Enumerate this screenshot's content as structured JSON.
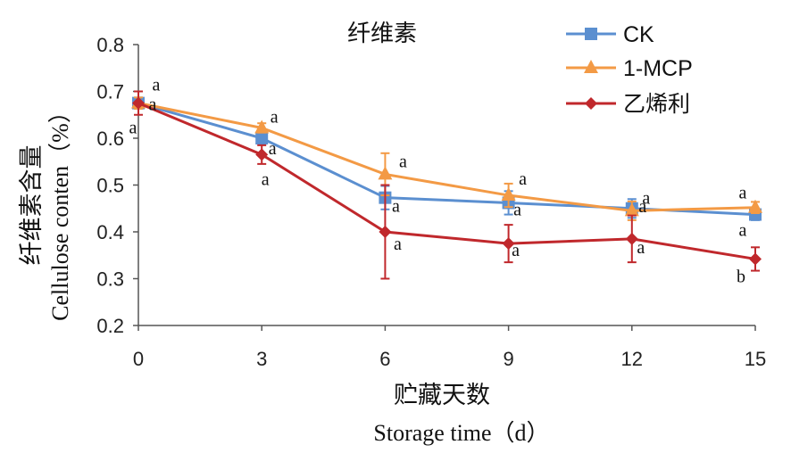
{
  "chart_data": {
    "type": "line",
    "title": "纤维素",
    "xlabel_cn": "贮藏天数",
    "xlabel_en": "Storage time（d）",
    "ylabel_cn": "纤维素含量",
    "ylabel_en": "Cellulose conten（%）",
    "x": [
      0,
      3,
      6,
      9,
      12,
      15
    ],
    "xlim": [
      0,
      15
    ],
    "ylim": [
      0.2,
      0.8
    ],
    "yticks": [
      0.2,
      0.3,
      0.4,
      0.5,
      0.6,
      0.7,
      0.8
    ],
    "legend_position": "top-right",
    "series": [
      {
        "name": "CK",
        "color": "#5b8fd0",
        "marker": "square",
        "values": [
          0.675,
          0.6,
          0.473,
          0.462,
          0.45,
          0.437
        ],
        "errors": [
          0.012,
          0.01,
          0.025,
          0.025,
          0.02,
          0.012
        ],
        "labels": [
          "a",
          "a",
          "a",
          "a",
          "a",
          "a"
        ]
      },
      {
        "name": "1-MCP",
        "color": "#f39a45",
        "marker": "triangle",
        "values": [
          0.675,
          0.622,
          0.523,
          0.478,
          0.445,
          0.452
        ],
        "errors": [
          0.012,
          0.01,
          0.045,
          0.025,
          0.02,
          0.012
        ],
        "labels": [
          "a",
          "a",
          "a",
          "a",
          "a",
          "a"
        ]
      },
      {
        "name": "乙烯利",
        "color": "#c0282c",
        "marker": "diamond",
        "values": [
          0.675,
          0.565,
          0.4,
          0.375,
          0.385,
          0.342
        ],
        "errors": [
          0.025,
          0.02,
          0.1,
          0.04,
          0.05,
          0.025
        ],
        "labels": [
          "a",
          "a",
          "a",
          "a",
          "a",
          "b"
        ]
      }
    ]
  }
}
